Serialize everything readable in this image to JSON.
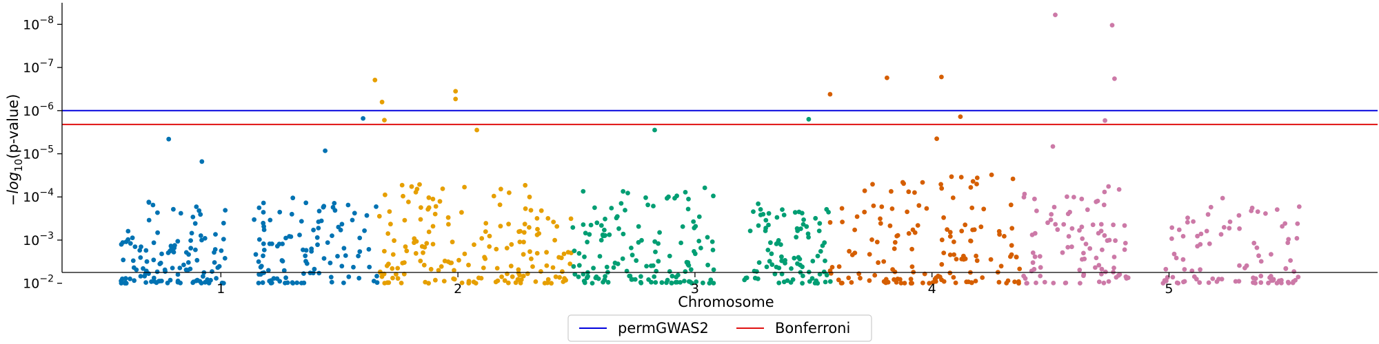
{
  "chart_data": {
    "type": "scatter",
    "title": "",
    "xlabel": "Chromosome",
    "ylabel_italic": "log",
    "ylabel_prefix": "−",
    "ylabel_sub": "10",
    "ylabel_suffix": "(p-value)",
    "y_scale": "log-p",
    "ylim_log10": [
      -2.25,
      -8.5
    ],
    "x_ticks": [
      {
        "label": "1",
        "pos": 1.0
      },
      {
        "label": "2",
        "pos": 2.0
      },
      {
        "label": "3",
        "pos": 3.0
      },
      {
        "label": "4",
        "pos": 4.0
      },
      {
        "label": "5",
        "pos": 5.0
      }
    ],
    "y_ticks": [
      {
        "exp": -2,
        "base": "10",
        "sup": "−2"
      },
      {
        "exp": -3,
        "base": "10",
        "sup": "−3"
      },
      {
        "exp": -4,
        "base": "10",
        "sup": "−4"
      },
      {
        "exp": -5,
        "base": "10",
        "sup": "−5"
      },
      {
        "exp": -6,
        "base": "10",
        "sup": "−6"
      },
      {
        "exp": -7,
        "base": "10",
        "sup": "−7"
      },
      {
        "exp": -8,
        "base": "10",
        "sup": "−8"
      }
    ],
    "xlim": [
      0.33,
      5.88
    ],
    "thresholds": [
      {
        "name": "permGWAS2",
        "log10p": -6.0,
        "color": "#0000dd"
      },
      {
        "name": "Bonferroni",
        "log10p": -5.68,
        "color": "#e01010"
      }
    ],
    "legend_placement": "bottom-center",
    "chromosome_colors": [
      "#0072b2",
      "#e69f00",
      "#009e73",
      "#d55e00",
      "#cc79a7"
    ],
    "point_color_order": [
      "chr1",
      "chr2",
      "chr3",
      "chr4",
      "chr5"
    ],
    "notable_points": [
      {
        "chrom": "chr1",
        "x": 0.78,
        "log10p": -5.34
      },
      {
        "chrom": "chr1",
        "x": 0.92,
        "log10p": -4.82
      },
      {
        "chrom": "chr1",
        "x": 1.44,
        "log10p": -5.07
      },
      {
        "chrom": "chr1",
        "x": 1.6,
        "log10p": -5.82
      },
      {
        "chrom": "chr2",
        "x": 1.65,
        "log10p": -6.71
      },
      {
        "chrom": "chr2",
        "x": 1.68,
        "log10p": -6.2
      },
      {
        "chrom": "chr2",
        "x": 1.69,
        "log10p": -5.78
      },
      {
        "chrom": "chr2",
        "x": 1.99,
        "log10p": -6.45
      },
      {
        "chrom": "chr2",
        "x": 1.99,
        "log10p": -6.27
      },
      {
        "chrom": "chr2",
        "x": 2.08,
        "log10p": -5.55
      },
      {
        "chrom": "chr3",
        "x": 2.83,
        "log10p": -5.55
      },
      {
        "chrom": "chr3",
        "x": 3.48,
        "log10p": -5.8
      },
      {
        "chrom": "chr4",
        "x": 3.57,
        "log10p": -6.38
      },
      {
        "chrom": "chr4",
        "x": 3.81,
        "log10p": -6.76
      },
      {
        "chrom": "chr4",
        "x": 4.04,
        "log10p": -6.78
      },
      {
        "chrom": "chr4",
        "x": 4.12,
        "log10p": -5.86
      },
      {
        "chrom": "chr4",
        "x": 4.02,
        "log10p": -5.35
      },
      {
        "chrom": "chr5",
        "x": 4.52,
        "log10p": -8.22
      },
      {
        "chrom": "chr5",
        "x": 4.76,
        "log10p": -7.98
      },
      {
        "chrom": "chr5",
        "x": 4.77,
        "log10p": -6.74
      },
      {
        "chrom": "chr5",
        "x": 4.73,
        "log10p": -5.77
      },
      {
        "chrom": "chr5",
        "x": 4.51,
        "log10p": -5.17
      }
    ],
    "bulk_point_clusters": [
      {
        "chrom": "chr1",
        "x_range": [
          0.57,
          1.02
        ],
        "log10p_range": [
          -2.0,
          -3.9
        ],
        "count": 120,
        "seed": 11
      },
      {
        "chrom": "chr1",
        "x_range": [
          1.14,
          1.66
        ],
        "log10p_range": [
          -2.0,
          -4.0
        ],
        "count": 110,
        "seed": 23
      },
      {
        "chrom": "chr2",
        "x_range": [
          1.66,
          2.32
        ],
        "log10p_range": [
          -2.0,
          -4.3
        ],
        "count": 130,
        "seed": 37
      },
      {
        "chrom": "chr2",
        "x_range": [
          2.25,
          2.48
        ],
        "log10p_range": [
          -2.0,
          -3.7
        ],
        "count": 45,
        "seed": 41
      },
      {
        "chrom": "chr3",
        "x_range": [
          2.48,
          3.08
        ],
        "log10p_range": [
          -2.0,
          -4.3
        ],
        "count": 140,
        "seed": 53
      },
      {
        "chrom": "chr3",
        "x_range": [
          3.2,
          3.58
        ],
        "log10p_range": [
          -2.0,
          -3.9
        ],
        "count": 90,
        "seed": 61
      },
      {
        "chrom": "chr4",
        "x_range": [
          3.57,
          4.38
        ],
        "log10p_range": [
          -2.0,
          -4.6
        ],
        "count": 150,
        "seed": 71
      },
      {
        "chrom": "chr5",
        "x_range": [
          4.38,
          4.84
        ],
        "log10p_range": [
          -2.0,
          -4.4
        ],
        "count": 90,
        "seed": 83
      },
      {
        "chrom": "chr5",
        "x_range": [
          4.97,
          5.55
        ],
        "log10p_range": [
          -2.0,
          -4.0
        ],
        "count": 95,
        "seed": 97
      }
    ]
  }
}
